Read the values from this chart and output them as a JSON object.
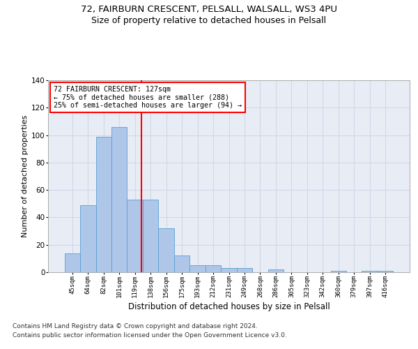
{
  "title1": "72, FAIRBURN CRESCENT, PELSALL, WALSALL, WS3 4PU",
  "title2": "Size of property relative to detached houses in Pelsall",
  "xlabel": "Distribution of detached houses by size in Pelsall",
  "ylabel": "Number of detached properties",
  "bin_labels": [
    "45sqm",
    "64sqm",
    "82sqm",
    "101sqm",
    "119sqm",
    "138sqm",
    "156sqm",
    "175sqm",
    "193sqm",
    "212sqm",
    "231sqm",
    "249sqm",
    "268sqm",
    "286sqm",
    "305sqm",
    "323sqm",
    "342sqm",
    "360sqm",
    "379sqm",
    "397sqm",
    "416sqm"
  ],
  "bar_heights": [
    14,
    49,
    99,
    106,
    53,
    53,
    32,
    12,
    5,
    5,
    3,
    3,
    0,
    2,
    0,
    0,
    0,
    1,
    0,
    1,
    1
  ],
  "bar_color": "#aec6e8",
  "bar_edge_color": "#5a9fd4",
  "annotation_text": "72 FAIRBURN CRESCENT: 127sqm\n← 75% of detached houses are smaller (288)\n25% of semi-detached houses are larger (94) →",
  "annotation_box_color": "white",
  "annotation_box_edge_color": "red",
  "ylim": [
    0,
    140
  ],
  "yticks": [
    0,
    20,
    40,
    60,
    80,
    100,
    120,
    140
  ],
  "grid_color": "#d0d8e8",
  "background_color": "#e8edf5",
  "footer_line1": "Contains HM Land Registry data © Crown copyright and database right 2024.",
  "footer_line2": "Contains public sector information licensed under the Open Government Licence v3.0.",
  "title1_fontsize": 9.5,
  "title2_fontsize": 9,
  "xlabel_fontsize": 8.5,
  "ylabel_fontsize": 8
}
